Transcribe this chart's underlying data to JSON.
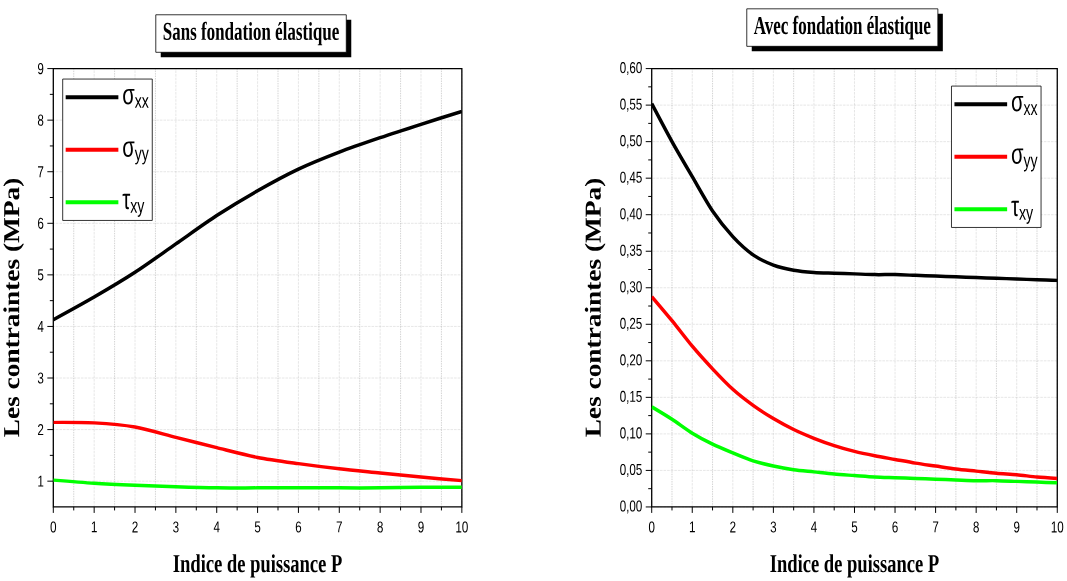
{
  "chart_data": [
    {
      "type": "line",
      "title": "Sans fondation élastique",
      "xlabel": "Indice de puissance P",
      "ylabel": "Les contraintes (MPa)",
      "x": [
        0,
        1,
        2,
        3,
        4,
        5,
        6,
        7,
        8,
        9,
        10
      ],
      "series": [
        {
          "name": "σ$_{xx}$",
          "color": "#000000",
          "values": [
            4.13,
            4.57,
            5.05,
            5.6,
            6.15,
            6.63,
            7.05,
            7.38,
            7.66,
            7.92,
            8.17
          ]
        },
        {
          "name": "σ$_{yy}$",
          "color": "#ff0000",
          "values": [
            2.14,
            2.13,
            2.05,
            1.85,
            1.65,
            1.46,
            1.34,
            1.24,
            1.16,
            1.08,
            1.01
          ]
        },
        {
          "name": "τ$_{xy}$",
          "color": "#00ff00",
          "values": [
            1.02,
            0.96,
            0.92,
            0.89,
            0.87,
            0.87,
            0.87,
            0.87,
            0.87,
            0.88,
            0.88
          ]
        }
      ],
      "xlim": [
        0,
        10
      ],
      "ylim": [
        0.5,
        9
      ],
      "xticks": [
        0,
        1,
        2,
        3,
        4,
        5,
        6,
        7,
        8,
        9,
        10
      ],
      "yticks": [
        1,
        2,
        3,
        4,
        5,
        6,
        7,
        8,
        9
      ],
      "grid": true,
      "legend": "top left",
      "line_style": "solid"
    },
    {
      "type": "line",
      "title": "Avec fondation élastique",
      "xlabel": "Indice de puissance P",
      "ylabel": "Les contraintes (MPa)",
      "x": [
        0,
        0.5,
        1,
        1.5,
        2,
        2.5,
        3,
        3.5,
        4,
        4.5,
        5,
        5.5,
        6,
        6.5,
        7,
        7.5,
        8,
        8.5,
        9,
        9.5,
        10
      ],
      "series": [
        {
          "name": "σ$_{xx}$",
          "color": "#000000",
          "values": [
            0.552,
            0.5,
            0.452,
            0.405,
            0.37,
            0.345,
            0.331,
            0.324,
            0.321,
            0.32,
            0.319,
            0.318,
            0.318,
            0.317,
            0.316,
            0.315,
            0.314,
            0.313,
            0.312,
            0.311,
            0.31
          ]
        },
        {
          "name": "σ$_{yy}$",
          "color": "#ff0000",
          "values": [
            0.288,
            0.255,
            0.22,
            0.189,
            0.161,
            0.139,
            0.121,
            0.106,
            0.094,
            0.084,
            0.076,
            0.07,
            0.065,
            0.06,
            0.056,
            0.052,
            0.049,
            0.046,
            0.044,
            0.041,
            0.039
          ]
        },
        {
          "name": "τ$_{xy}$",
          "color": "#00ff00",
          "values": [
            0.137,
            0.12,
            0.101,
            0.086,
            0.074,
            0.063,
            0.056,
            0.051,
            0.048,
            0.045,
            0.043,
            0.041,
            0.04,
            0.039,
            0.038,
            0.037,
            0.036,
            0.036,
            0.035,
            0.034,
            0.033
          ]
        }
      ],
      "xlim": [
        0,
        10
      ],
      "ylim": [
        0,
        0.6
      ],
      "xticks": [
        0,
        1,
        2,
        3,
        4,
        5,
        6,
        7,
        8,
        9,
        10
      ],
      "yticks": [
        {
          "value": 0,
          "label": "0,00"
        },
        {
          "value": 0.05,
          "label": "0,05"
        },
        {
          "value": 0.1,
          "label": "0,10"
        },
        {
          "value": 0.15,
          "label": "0,15"
        },
        {
          "value": 0.2,
          "label": "0,20"
        },
        {
          "value": 0.25,
          "label": "0,25"
        },
        {
          "value": 0.3,
          "label": "0,30"
        },
        {
          "value": 0.35,
          "label": "0,35"
        },
        {
          "value": 0.4,
          "label": "0,40"
        },
        {
          "value": 0.45,
          "label": "0,45"
        },
        {
          "value": 0.5,
          "label": "0,50"
        },
        {
          "value": 0.55,
          "label": "0,55"
        },
        {
          "value": 0.6,
          "label": "0,60"
        }
      ],
      "grid": true,
      "legend": "top right",
      "line_style": "solid"
    }
  ]
}
